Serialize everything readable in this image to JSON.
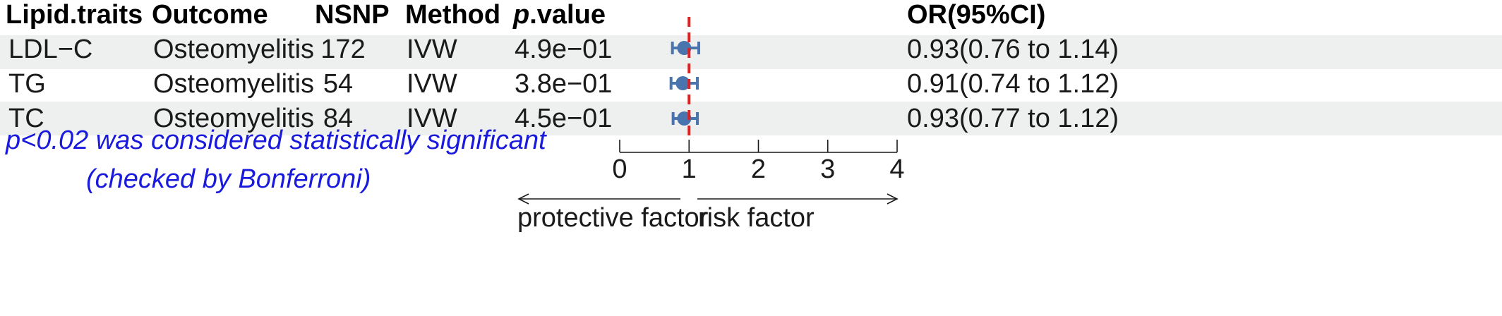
{
  "headers": {
    "trait": "Lipid.traits",
    "outcome": "Outcome",
    "nsnp": "NSNP",
    "method": "Method",
    "pvalue_p": "p",
    "pvalue_rest": ".value",
    "or": "OR(95%CI)"
  },
  "rows": [
    {
      "trait": "LDL−C",
      "outcome": "Osteomyelitis",
      "nsnp": "172",
      "method": "IVW",
      "pvalue": "4.9e−01",
      "or_text": "0.93(0.76 to 1.14)"
    },
    {
      "trait": "TG",
      "outcome": "Osteomyelitis",
      "nsnp": "54",
      "method": "IVW",
      "pvalue": "3.8e−01",
      "or_text": "0.91(0.74 to 1.12)"
    },
    {
      "trait": "TC",
      "outcome": "Osteomyelitis",
      "nsnp": "84",
      "method": "IVW",
      "pvalue": "4.5e−01",
      "or_text": "0.93(0.77 to 1.12)"
    }
  ],
  "footnote": {
    "line1": "p<0.02 was considered statistically significant",
    "line2": "(checked by Bonferroni)"
  },
  "direction_labels": {
    "left": "protective factor",
    "right": "risk factor"
  },
  "colors": {
    "row_shade": "#eef0ef",
    "point": "#4a74ad",
    "reference_line": "#e02020",
    "footnote": "#1a1adc"
  },
  "chart_data": {
    "type": "forest",
    "series": [
      {
        "category": "LDL−C",
        "estimate": 0.93,
        "lower": 0.76,
        "upper": 1.14
      },
      {
        "category": "TG",
        "estimate": 0.91,
        "lower": 0.74,
        "upper": 1.12
      },
      {
        "category": "TC",
        "estimate": 0.93,
        "lower": 0.77,
        "upper": 1.12
      }
    ],
    "reference_value": 1,
    "xlim": [
      0,
      4
    ],
    "xticks": [
      "0",
      "1",
      "2",
      "3",
      "4"
    ]
  }
}
